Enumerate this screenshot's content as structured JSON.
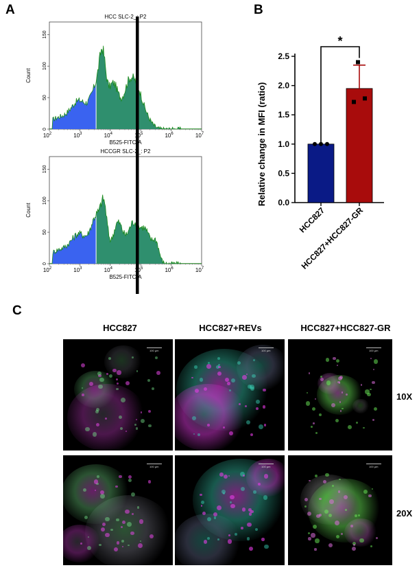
{
  "panels": {
    "a": "A",
    "b": "B",
    "c": "C"
  },
  "histograms": [
    {
      "title": "HCC SLC-2_: P2",
      "xlabel": "B525-FITC-A",
      "ylabel": "Count",
      "yticks": [
        "0",
        "50",
        "100",
        "150"
      ],
      "xticks_exp": [
        "2",
        "3",
        "4",
        "5",
        "6",
        "7"
      ],
      "gate_color": "#3a63f0",
      "pos_color": "#2f8f6e",
      "line_color": "#1a8a1a"
    },
    {
      "title": "HCCGR SLC-2_: P2",
      "xlabel": "B525-FITC-A",
      "ylabel": "Count",
      "yticks": [
        "0",
        "50",
        "100",
        "150"
      ],
      "xticks_exp": [
        "2",
        "3",
        "4",
        "5",
        "6",
        "7"
      ],
      "gate_color": "#3a63f0",
      "pos_color": "#2f8f6e",
      "line_color": "#1a8a1a"
    }
  ],
  "chart_data": {
    "type": "bar",
    "categories": [
      "HCC827",
      "HCC827+HCC827-GR"
    ],
    "values": [
      1.0,
      1.95
    ],
    "error_plus": [
      0.0,
      0.4
    ],
    "points": [
      [
        1.0,
        1.0,
        1.0
      ],
      [
        2.4,
        1.72,
        1.78
      ]
    ],
    "ylabel": "Relative change in MFI (ratio)",
    "yticks": [
      "0.0",
      "0.5",
      "1.0",
      "1.5",
      "2.0",
      "2.5"
    ],
    "ylim": [
      0,
      2.5
    ],
    "colors": [
      "#0a1a86",
      "#a80c0c"
    ],
    "significance": "*"
  },
  "microscopy": {
    "columns": [
      "HCC827",
      "HCC827+REVs",
      "HCC827+HCC827-GR"
    ],
    "rows": [
      "10X",
      "20X"
    ],
    "scale_text": "100 µm"
  }
}
